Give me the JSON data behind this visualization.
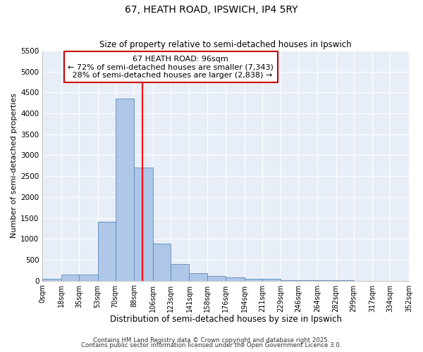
{
  "title": "67, HEATH ROAD, IPSWICH, IP4 5RY",
  "subtitle": "Size of property relative to semi-detached houses in Ipswich",
  "xlabel": "Distribution of semi-detached houses by size in Ipswich",
  "ylabel": "Number of semi-detached properties",
  "property_size": 96,
  "property_label": "67 HEATH ROAD: 96sqm",
  "pct_smaller": 72,
  "pct_larger": 28,
  "count_smaller": 7343,
  "count_larger": 2838,
  "bin_edges": [
    0,
    18,
    35,
    53,
    70,
    88,
    106,
    123,
    141,
    158,
    176,
    194,
    211,
    229,
    246,
    264,
    282,
    299,
    317,
    334,
    352
  ],
  "bin_labels": [
    "0sqm",
    "18sqm",
    "35sqm",
    "53sqm",
    "70sqm",
    "88sqm",
    "106sqm",
    "123sqm",
    "141sqm",
    "158sqm",
    "176sqm",
    "194sqm",
    "211sqm",
    "229sqm",
    "246sqm",
    "264sqm",
    "282sqm",
    "299sqm",
    "317sqm",
    "334sqm",
    "352sqm"
  ],
  "bar_heights": [
    50,
    150,
    150,
    1400,
    4350,
    2700,
    880,
    400,
    175,
    110,
    75,
    50,
    50,
    5,
    5,
    3,
    2,
    1,
    1,
    0
  ],
  "bar_color": "#aec6e8",
  "bar_edge_color": "#5b8db8",
  "red_line_x": 96,
  "ylim": [
    0,
    5500
  ],
  "yticks": [
    0,
    500,
    1000,
    1500,
    2000,
    2500,
    3000,
    3500,
    4000,
    4500,
    5000,
    5500
  ],
  "figure_bg": "#ffffff",
  "axes_bg": "#e8eef8",
  "grid_color": "#ffffff",
  "annotation_box_facecolor": "#ffffff",
  "annotation_box_edgecolor": "#cc0000",
  "footer_line1": "Contains HM Land Registry data © Crown copyright and database right 2025.",
  "footer_line2": "Contains public sector information licensed under the Open Government Licence 3.0."
}
